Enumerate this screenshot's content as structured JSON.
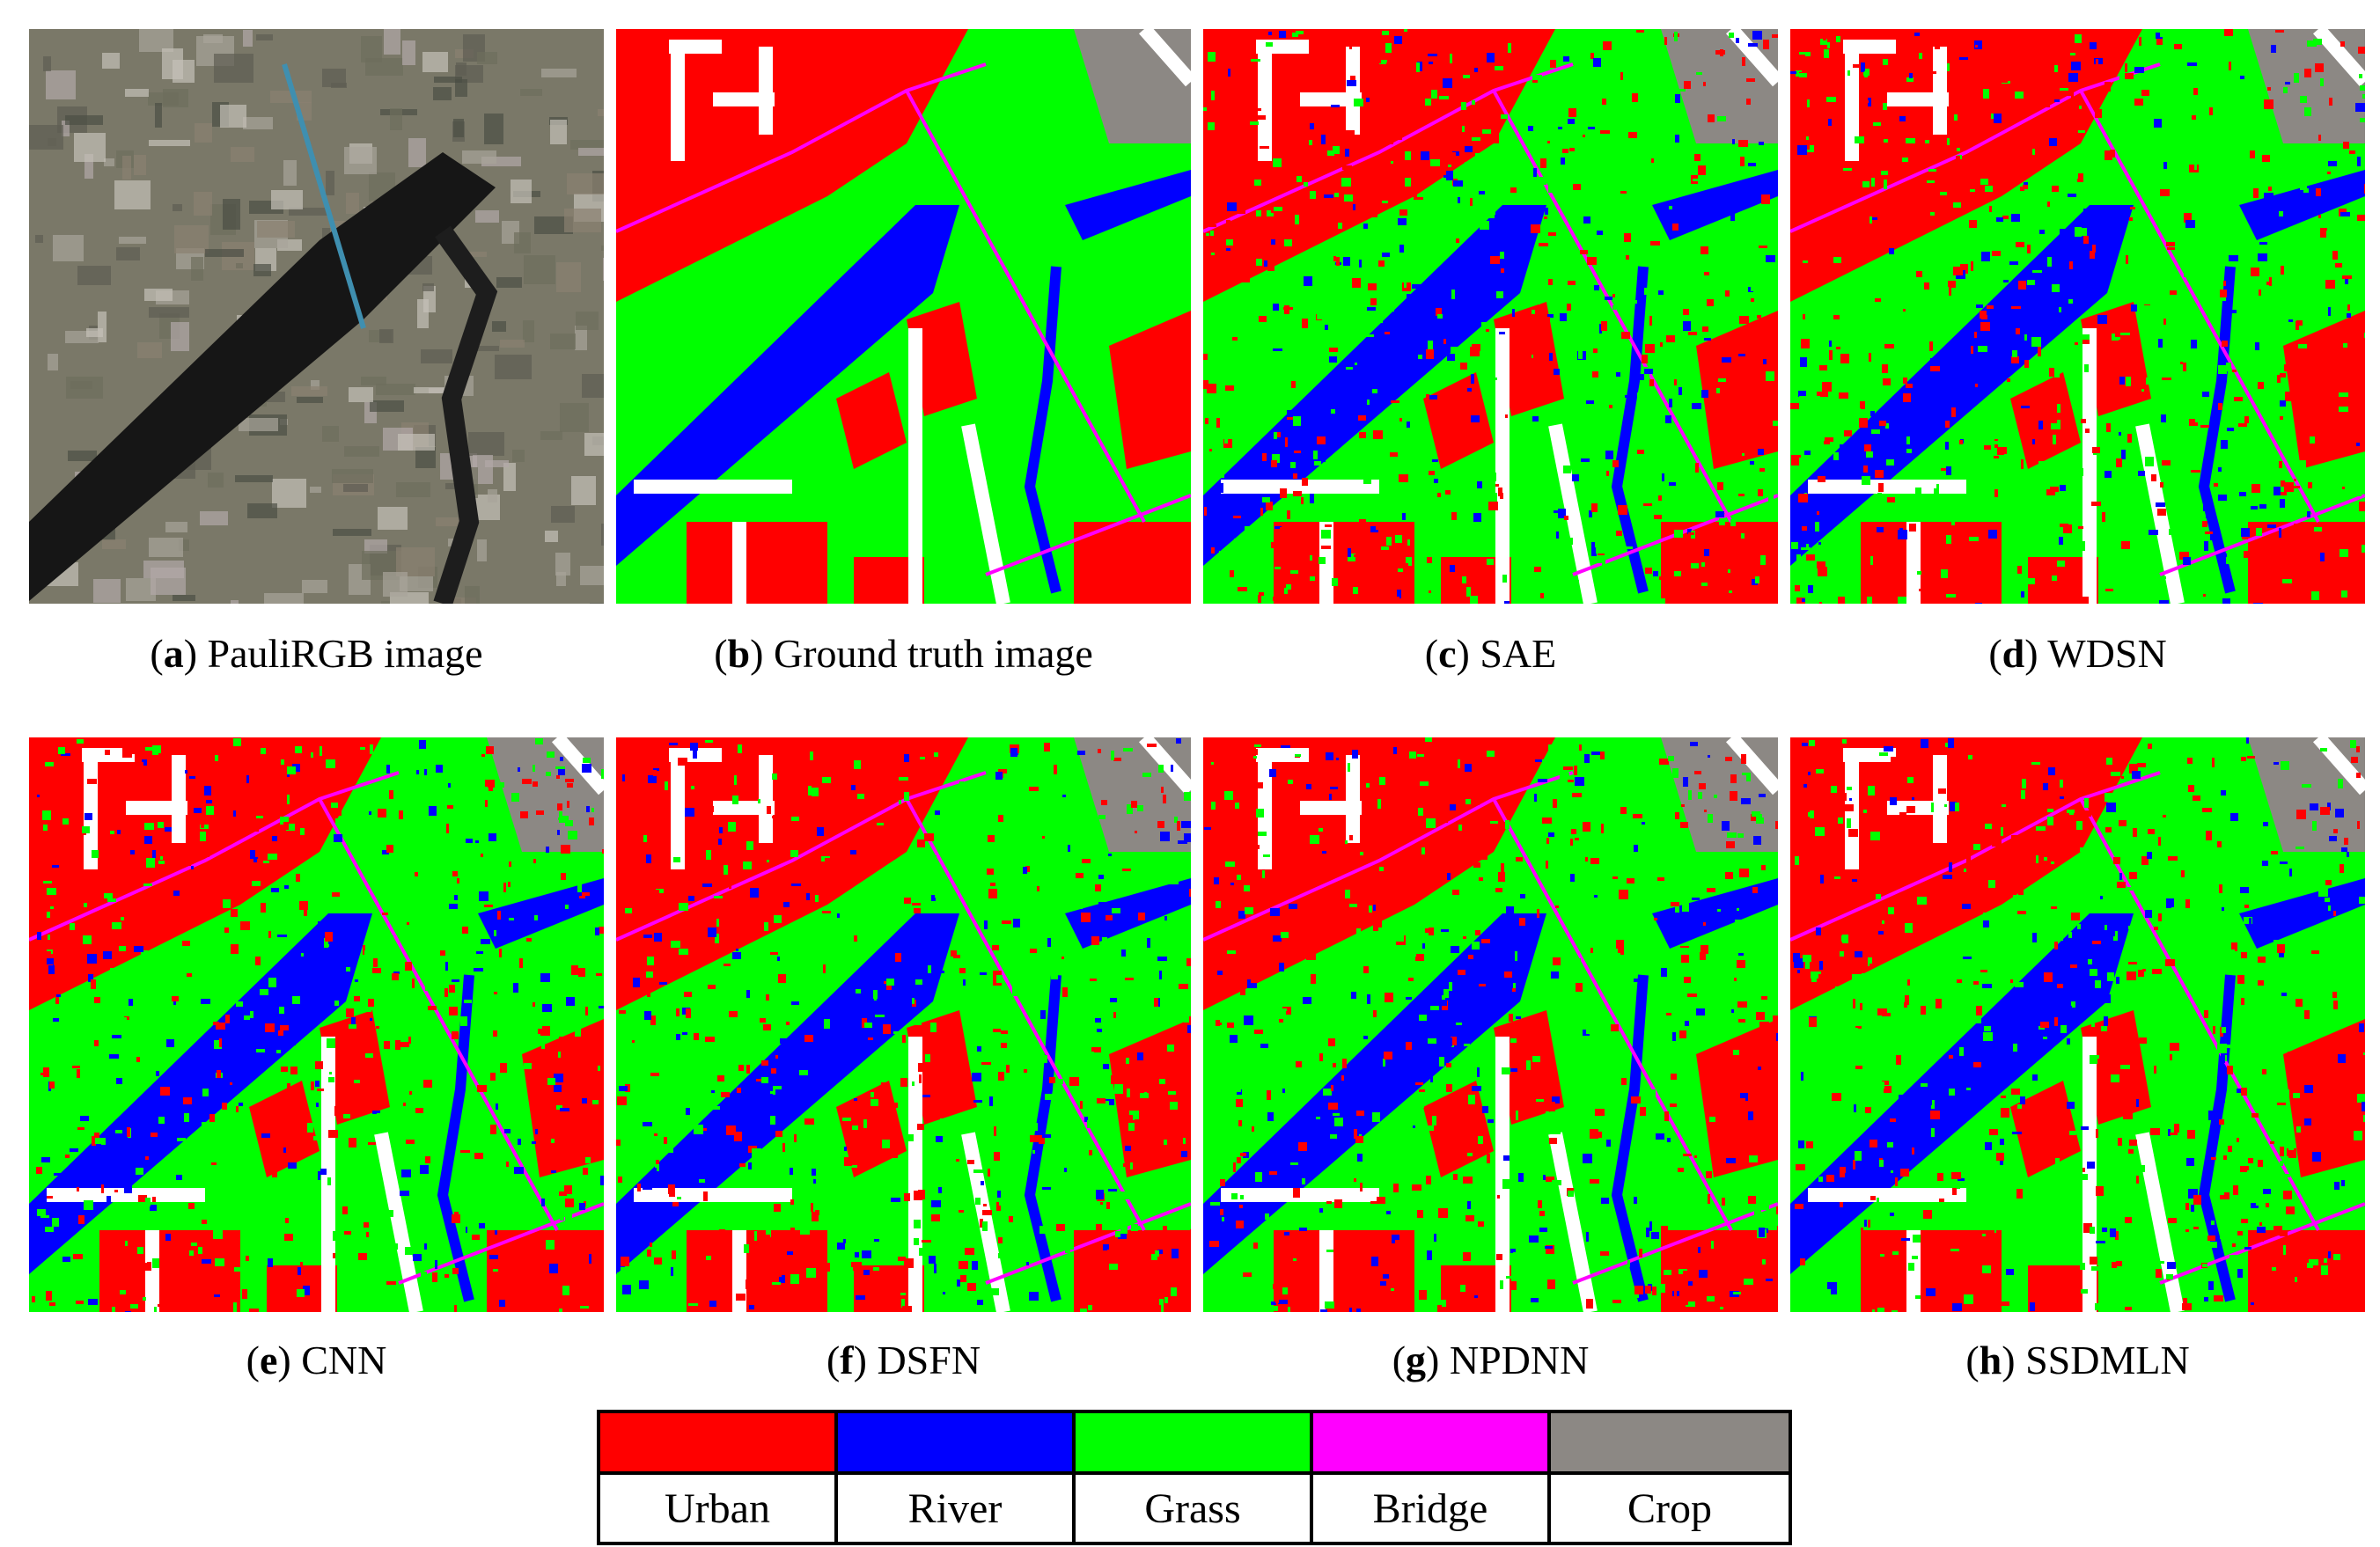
{
  "panels": [
    {
      "letter": "a",
      "name": "PauliRGB image",
      "kind": "pauli"
    },
    {
      "letter": "b",
      "name": "Ground truth image",
      "kind": "truth"
    },
    {
      "letter": "c",
      "name": "SAE",
      "kind": "noisy"
    },
    {
      "letter": "d",
      "name": "WDSN",
      "kind": "noisy"
    },
    {
      "letter": "e",
      "name": "CNN",
      "kind": "noisy"
    },
    {
      "letter": "f",
      "name": "DSFN",
      "kind": "noisy"
    },
    {
      "letter": "g",
      "name": "NPDNN",
      "kind": "noisy"
    },
    {
      "letter": "h",
      "name": "SSDMLN",
      "kind": "noisy"
    }
  ],
  "legend": [
    {
      "label": "Urban",
      "color": "#ff0000"
    },
    {
      "label": "River",
      "color": "#0000ff"
    },
    {
      "label": "Grass",
      "color": "#00ff00"
    },
    {
      "label": "Bridge",
      "color": "#ff00ff"
    },
    {
      "label": "Crop",
      "color": "#8c8884"
    }
  ]
}
